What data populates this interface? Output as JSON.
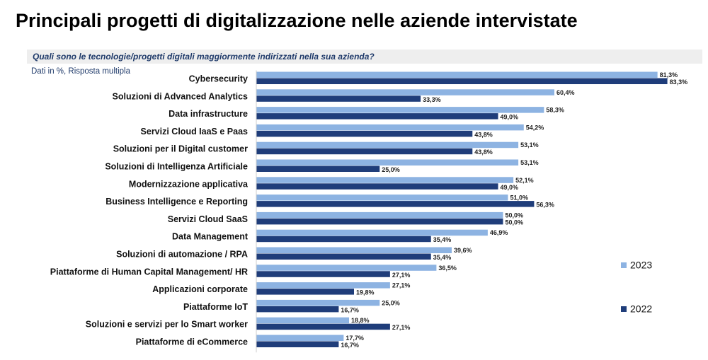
{
  "header": {
    "title": "Principali progetti di digitalizzazione nelle aziende intervistate",
    "question": "Quali sono le tecnologie/progetti digitali maggiormente indirizzati nella sua azienda?",
    "subtitle": "Dati in %, Risposta multipla"
  },
  "colors": {
    "s2023": "#8db3e2",
    "s2022": "#1f3d7a"
  },
  "chart_data": {
    "type": "bar",
    "orientation": "horizontal",
    "legend_position": "right",
    "categories": [
      "Cybersecurity",
      "Soluzioni di Advanced Analytics",
      "Data infrastructure",
      "Servizi Cloud IaaS e Paas",
      "Soluzioni per il Digital customer",
      "Soluzioni di Intelligenza Artificiale",
      "Modernizzazione applicativa",
      "Business Intelligence e Reporting",
      "Servizi Cloud SaaS",
      "Data Management",
      "Soluzioni di automazione / RPA",
      "Piattaforme di Human Capital Management/ HR",
      "Applicazioni corporate",
      "Piattaforme IoT",
      "Soluzioni e servizi per lo Smart worker",
      "Piattaforme di eCommerce"
    ],
    "series": [
      {
        "name": "2023",
        "values": [
          81.3,
          60.4,
          58.3,
          54.2,
          53.1,
          53.1,
          52.1,
          51.0,
          50.0,
          46.9,
          39.6,
          36.5,
          27.1,
          25.0,
          18.8,
          17.7
        ],
        "labels": [
          "81,3%",
          "60,4%",
          "58,3%",
          "54,2%",
          "53,1%",
          "53,1%",
          "52,1%",
          "51,0%",
          "50,0%",
          "46,9%",
          "39,6%",
          "36,5%",
          "27,1%",
          "25,0%",
          "18,8%",
          "17,7%"
        ]
      },
      {
        "name": "2022",
        "values": [
          83.3,
          33.3,
          49.0,
          43.8,
          43.8,
          25.0,
          49.0,
          56.3,
          50.0,
          35.4,
          35.4,
          27.1,
          19.8,
          16.7,
          27.1,
          16.7
        ],
        "labels": [
          "83,3%",
          "33,3%",
          "49,0%",
          "43,8%",
          "43,8%",
          "25,0%",
          "49,0%",
          "56,3%",
          "50,0%",
          "35,4%",
          "35,4%",
          "27,1%",
          "19,8%",
          "16,7%",
          "27,1%",
          "16,7%"
        ]
      }
    ],
    "xlim": [
      0,
      100
    ]
  }
}
